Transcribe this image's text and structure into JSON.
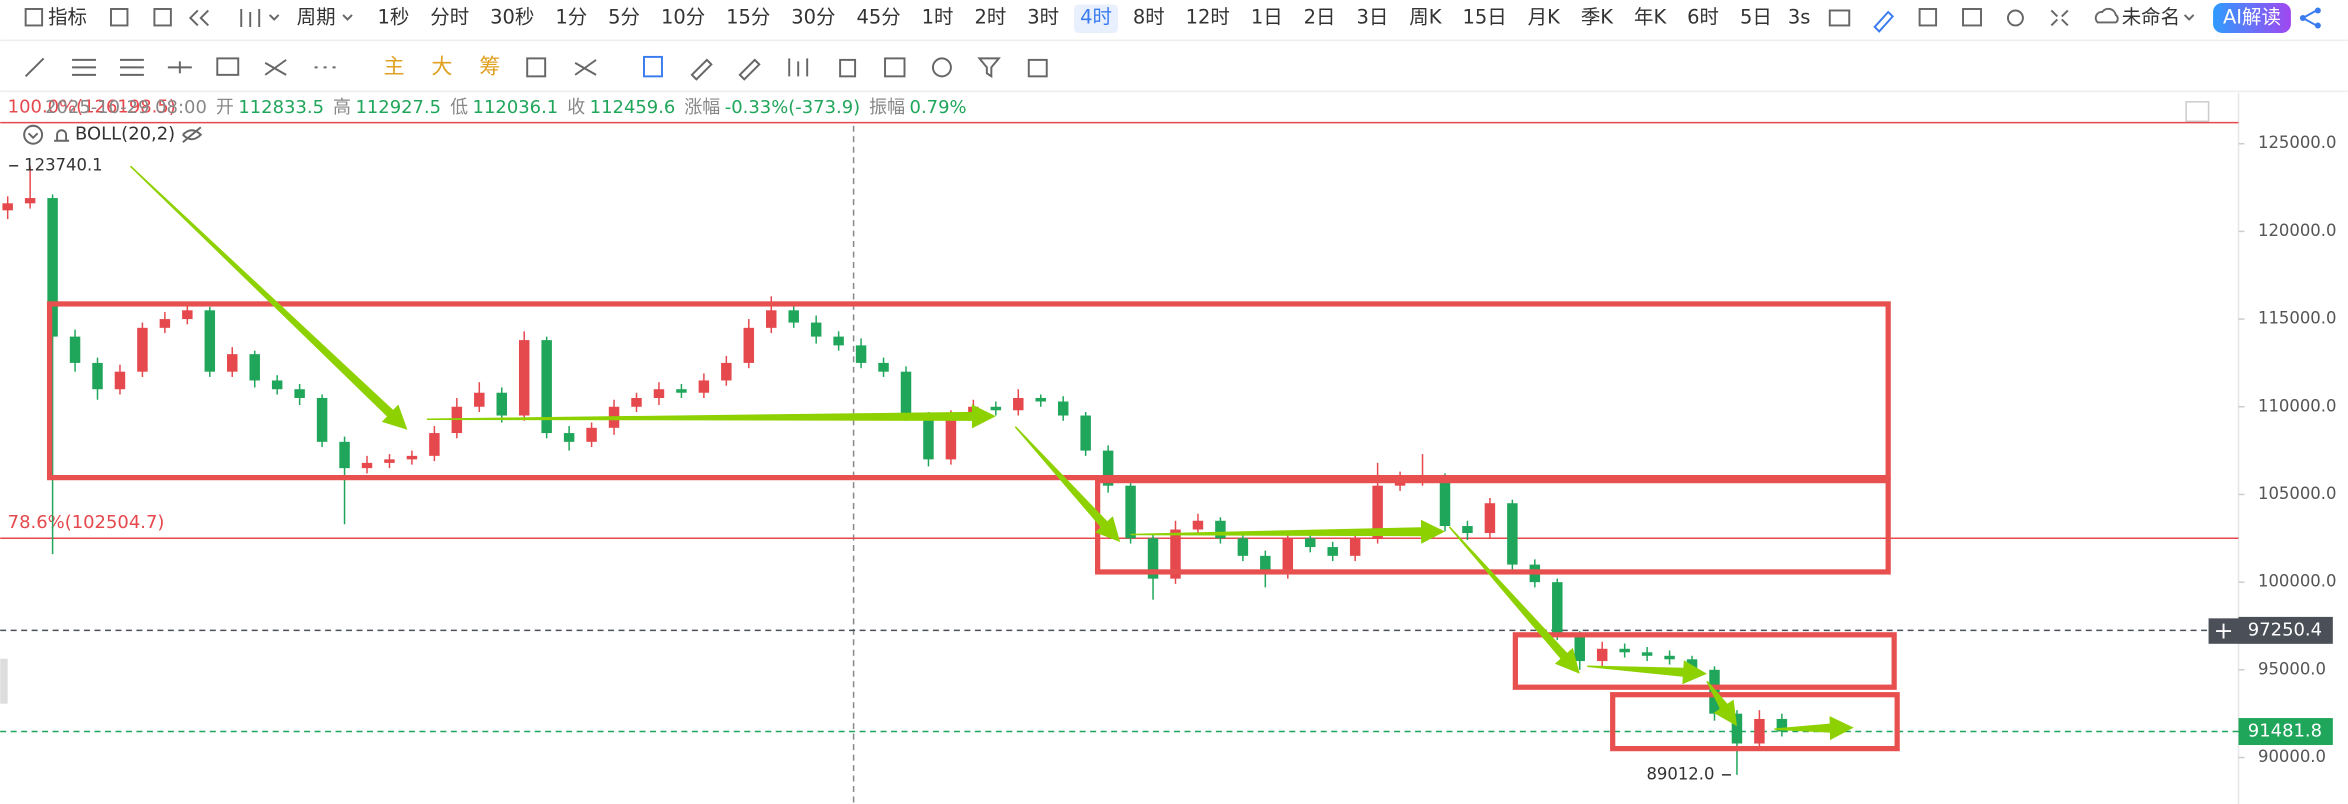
{
  "toolbar": {
    "indicator": "指标",
    "period": "周期",
    "intervals": [
      "1秒",
      "分时",
      "30秒",
      "1分",
      "5分",
      "10分",
      "15分",
      "30分",
      "45分",
      "1时",
      "2时",
      "3时",
      "4时",
      "8时",
      "12时",
      "1日",
      "2日",
      "3日",
      "周K",
      "15日",
      "月K",
      "季K",
      "年K",
      "6时",
      "5日"
    ],
    "active_interval": "4时",
    "refresh": "3s",
    "layout_name": "未命名",
    "ai_button": "AI解读",
    "chart_modes": [
      "主",
      "大",
      "筹"
    ]
  },
  "info": {
    "datetime": "2025-10-29 08:00",
    "fields": [
      {
        "label": "开",
        "value": "112833.5"
      },
      {
        "label": "高",
        "value": "112927.5"
      },
      {
        "label": "低",
        "value": "112036.1"
      },
      {
        "label": "收",
        "value": "112459.6"
      },
      {
        "label": "涨幅",
        "value": "-0.33%(-373.9)"
      },
      {
        "label": "振幅",
        "value": "0.79%"
      }
    ],
    "indicator_label": "BOLL(20,2)"
  },
  "chart_data": {
    "type": "candlestick",
    "up_color": "#e5484d",
    "down_color": "#20a65a",
    "ylim": [
      87350,
      127900
    ],
    "yticks": [
      {
        "value": 125000,
        "label": "125000.0"
      },
      {
        "value": 120000,
        "label": "120000.0"
      },
      {
        "value": 115000,
        "label": "115000.0"
      },
      {
        "value": 110000,
        "label": "110000.0"
      },
      {
        "value": 105000,
        "label": "105000.0"
      },
      {
        "value": 100000,
        "label": "100000.0"
      },
      {
        "value": 95000,
        "label": "95000.0"
      },
      {
        "value": 90000,
        "label": "90000.0"
      }
    ],
    "open": [
      121200,
      121600,
      121900,
      114000,
      112500,
      111000,
      112000,
      114500,
      115000,
      115500,
      112000,
      113000,
      111500,
      111000,
      110500,
      108000,
      106500,
      106800,
      107000,
      107200,
      108500,
      110000,
      110800,
      109500,
      113800,
      108500,
      108000,
      108800,
      110000,
      110500,
      111000,
      110800,
      111500,
      112500,
      114500,
      115500,
      114800,
      114000,
      113500,
      112500,
      112000,
      109500,
      107000,
      109500,
      110000,
      109800,
      110500,
      110300,
      109500,
      107500,
      105500,
      102500,
      100200,
      103000,
      103500,
      102500,
      101500,
      100500,
      102500,
      102000,
      101500,
      102500,
      105500,
      105800,
      106000,
      103200,
      102800,
      104500,
      101000,
      100000,
      97000,
      95500,
      96200,
      96000,
      95800,
      95600,
      95000,
      92500,
      90800,
      92200
    ],
    "high": [
      122000,
      123740.1,
      122100,
      114400,
      112800,
      112400,
      114800,
      115400,
      115800,
      115700,
      113400,
      113200,
      111800,
      111300,
      110700,
      108300,
      107200,
      107300,
      107500,
      108900,
      110500,
      111400,
      111100,
      114300,
      114000,
      108900,
      109100,
      110400,
      110800,
      111400,
      111300,
      111900,
      112900,
      115000,
      116300,
      115800,
      115200,
      114300,
      113900,
      112800,
      112300,
      109700,
      109800,
      110400,
      110300,
      111000,
      110700,
      110600,
      109700,
      107800,
      105800,
      102700,
      103500,
      103900,
      103700,
      102800,
      101800,
      102800,
      102700,
      102300,
      102900,
      106800,
      106300,
      107300,
      106200,
      103500,
      104800,
      104700,
      101300,
      100200,
      97200,
      96600,
      96500,
      96300,
      96100,
      95800,
      95200,
      92700,
      92700,
      92500
    ],
    "low": [
      120700,
      121300,
      101600,
      112000,
      110400,
      110700,
      111700,
      114200,
      114700,
      111700,
      111700,
      111100,
      110700,
      110100,
      107700,
      103300,
      106200,
      106500,
      106700,
      106900,
      108200,
      109700,
      109100,
      109200,
      108200,
      107500,
      107700,
      108400,
      109700,
      110100,
      110500,
      110500,
      111200,
      112200,
      114200,
      114500,
      113600,
      113200,
      112200,
      111700,
      109200,
      106600,
      106700,
      109200,
      109500,
      109500,
      110000,
      109200,
      107200,
      105100,
      102200,
      99000,
      99900,
      102700,
      102200,
      101200,
      99700,
      100200,
      101700,
      101200,
      101200,
      102200,
      105200,
      105500,
      102900,
      102400,
      102500,
      100700,
      99700,
      96700,
      95000,
      95200,
      95700,
      95500,
      95300,
      94600,
      92100,
      89012.0,
      90500,
      91200
    ],
    "close": [
      121600,
      121900,
      114000,
      112500,
      111000,
      112000,
      114500,
      115000,
      115500,
      112000,
      113000,
      111500,
      111000,
      110500,
      108000,
      106500,
      106800,
      107000,
      107200,
      108500,
      110000,
      110800,
      109500,
      113800,
      108500,
      108000,
      108800,
      110000,
      110500,
      111000,
      110800,
      111500,
      112500,
      114500,
      115500,
      114800,
      114000,
      113500,
      112500,
      112000,
      109500,
      107000,
      109500,
      110000,
      109800,
      110500,
      110300,
      109500,
      107500,
      105500,
      102500,
      100200,
      103000,
      103500,
      102500,
      101500,
      100500,
      102500,
      102000,
      101500,
      102500,
      105500,
      105800,
      106000,
      103200,
      102800,
      104500,
      101000,
      100000,
      97000,
      95500,
      96200,
      96000,
      95800,
      95600,
      95000,
      92500,
      90800,
      92200,
      91481.8
    ],
    "levels": [
      {
        "label": "100.0%(126198.5)",
        "value": 126198.5,
        "color": "#e5484d"
      },
      {
        "label": "78.6%(102504.7)",
        "value": 102504.7,
        "color": "#e5484d"
      }
    ],
    "price_tags": [
      {
        "value": 97250.4,
        "color": "#4a4f58"
      },
      {
        "value": 91481.8,
        "color": "#20a65a"
      }
    ],
    "extremes": [
      {
        "value": 123740.1
      },
      {
        "value": 89012.0,
        "label": "89012.0"
      }
    ]
  }
}
